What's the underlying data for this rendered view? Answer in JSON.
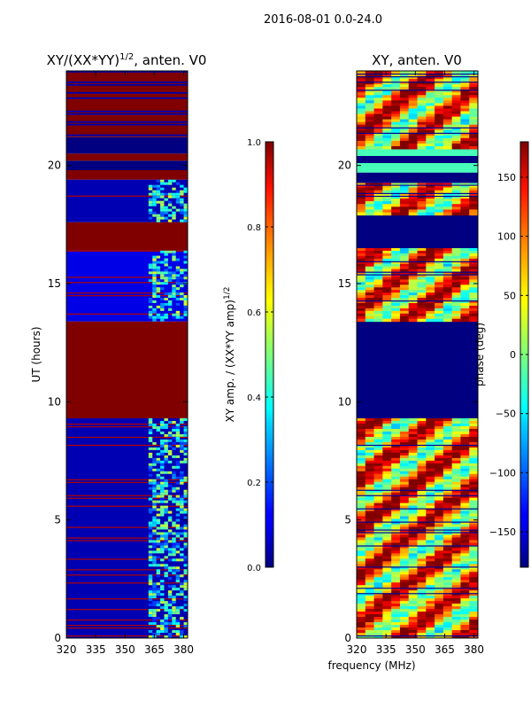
{
  "figure": {
    "suptitle": "2016-08-01 0.0-24.0"
  },
  "chart_data": [
    {
      "type": "heatmap",
      "title": "XY/(XX*YY)",
      "title_exponent": "1/2",
      "title_suffix": ", anten. V0",
      "xlabel": "",
      "ylabel": "UT (hours)",
      "xlim": [
        320,
        382
      ],
      "ylim": [
        0,
        24
      ],
      "xticks": [
        320,
        335,
        350,
        365,
        380
      ],
      "yticks": [
        0,
        5,
        10,
        15,
        20
      ],
      "colormap": "jet",
      "colorbar": {
        "label": "XY amp. / (XX*YY amp)",
        "label_exponent": "1/2",
        "range": [
          0.0,
          1.0
        ],
        "ticks": [
          "0.0",
          "0.2",
          "0.4",
          "0.6",
          "0.8",
          "1.0"
        ]
      },
      "bands": [
        {
          "from": 0.0,
          "to": 9.3,
          "value": 0.05,
          "note": "low amplitude, striped"
        },
        {
          "from": 9.3,
          "to": 13.4,
          "value": 1.0,
          "note": "saturated"
        },
        {
          "from": 13.4,
          "to": 16.4,
          "value": 0.1,
          "note": "low amplitude, striped"
        },
        {
          "from": 16.4,
          "to": 17.6,
          "value": 1.0,
          "note": "saturated"
        },
        {
          "from": 17.6,
          "to": 19.4,
          "value": 0.05,
          "note": "low amplitude"
        },
        {
          "from": 19.4,
          "to": 19.8,
          "value": 1.0
        },
        {
          "from": 19.8,
          "to": 20.2,
          "value": 0.0
        },
        {
          "from": 20.2,
          "to": 20.5,
          "value": 1.0
        },
        {
          "from": 20.5,
          "to": 21.2,
          "value": 0.0
        },
        {
          "from": 21.2,
          "to": 24.0,
          "value": 1.0,
          "note": "mostly saturated"
        }
      ]
    },
    {
      "type": "heatmap",
      "title": "XY, anten. V0",
      "xlabel": "frequency (MHz)",
      "ylabel": "",
      "xlim": [
        320,
        382
      ],
      "ylim": [
        0,
        24
      ],
      "xticks": [
        320,
        335,
        350,
        365,
        380
      ],
      "yticks": [
        0,
        5,
        10,
        15,
        20
      ],
      "colormap": "jet",
      "colorbar": {
        "label": "phase (deg)",
        "range": [
          -180,
          180
        ],
        "ticks": [
          "−150",
          "−100",
          "−50",
          "0",
          "50",
          "100",
          "150"
        ]
      },
      "bands": [
        {
          "from": 0.0,
          "to": 9.3,
          "value": 90,
          "note": "variable phase"
        },
        {
          "from": 9.3,
          "to": 13.4,
          "value": -180,
          "note": "flagged / constant"
        },
        {
          "from": 13.4,
          "to": 16.5,
          "value": 90,
          "note": "variable phase"
        },
        {
          "from": 16.5,
          "to": 17.9,
          "value": -180
        },
        {
          "from": 17.9,
          "to": 19.3,
          "value": 90,
          "note": "variable phase"
        },
        {
          "from": 19.3,
          "to": 19.7,
          "value": -180
        },
        {
          "from": 19.7,
          "to": 20.1,
          "value": -20
        },
        {
          "from": 20.1,
          "to": 20.4,
          "value": -180
        },
        {
          "from": 20.4,
          "to": 20.7,
          "value": -20
        },
        {
          "from": 20.7,
          "to": 24.0,
          "value": 90,
          "note": "variable phase"
        }
      ]
    }
  ]
}
